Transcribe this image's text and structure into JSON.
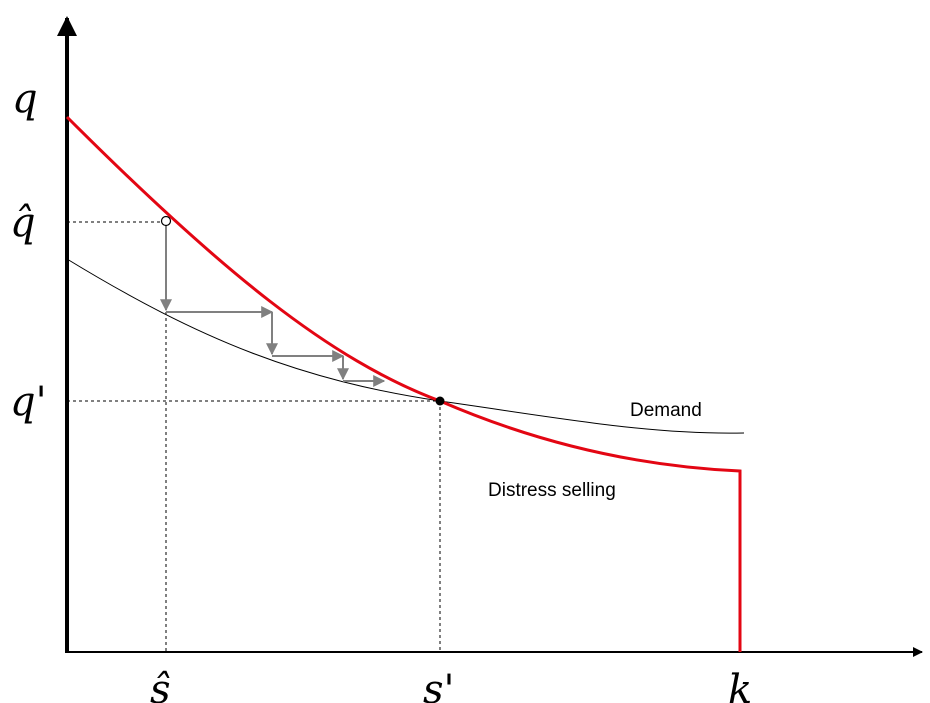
{
  "axis_labels": {
    "y_top": "q",
    "q_hat": "q̂",
    "q_prime": "q'",
    "s_hat": "ŝ",
    "s_prime": "s'",
    "k": "k"
  },
  "curve_labels": {
    "demand": "Demand",
    "distress": "Distress selling"
  },
  "colors": {
    "axis": "#000000",
    "distress_curve": "#e30613",
    "demand_curve": "#000000",
    "arrows": "#808080",
    "guides": "#000000"
  }
}
